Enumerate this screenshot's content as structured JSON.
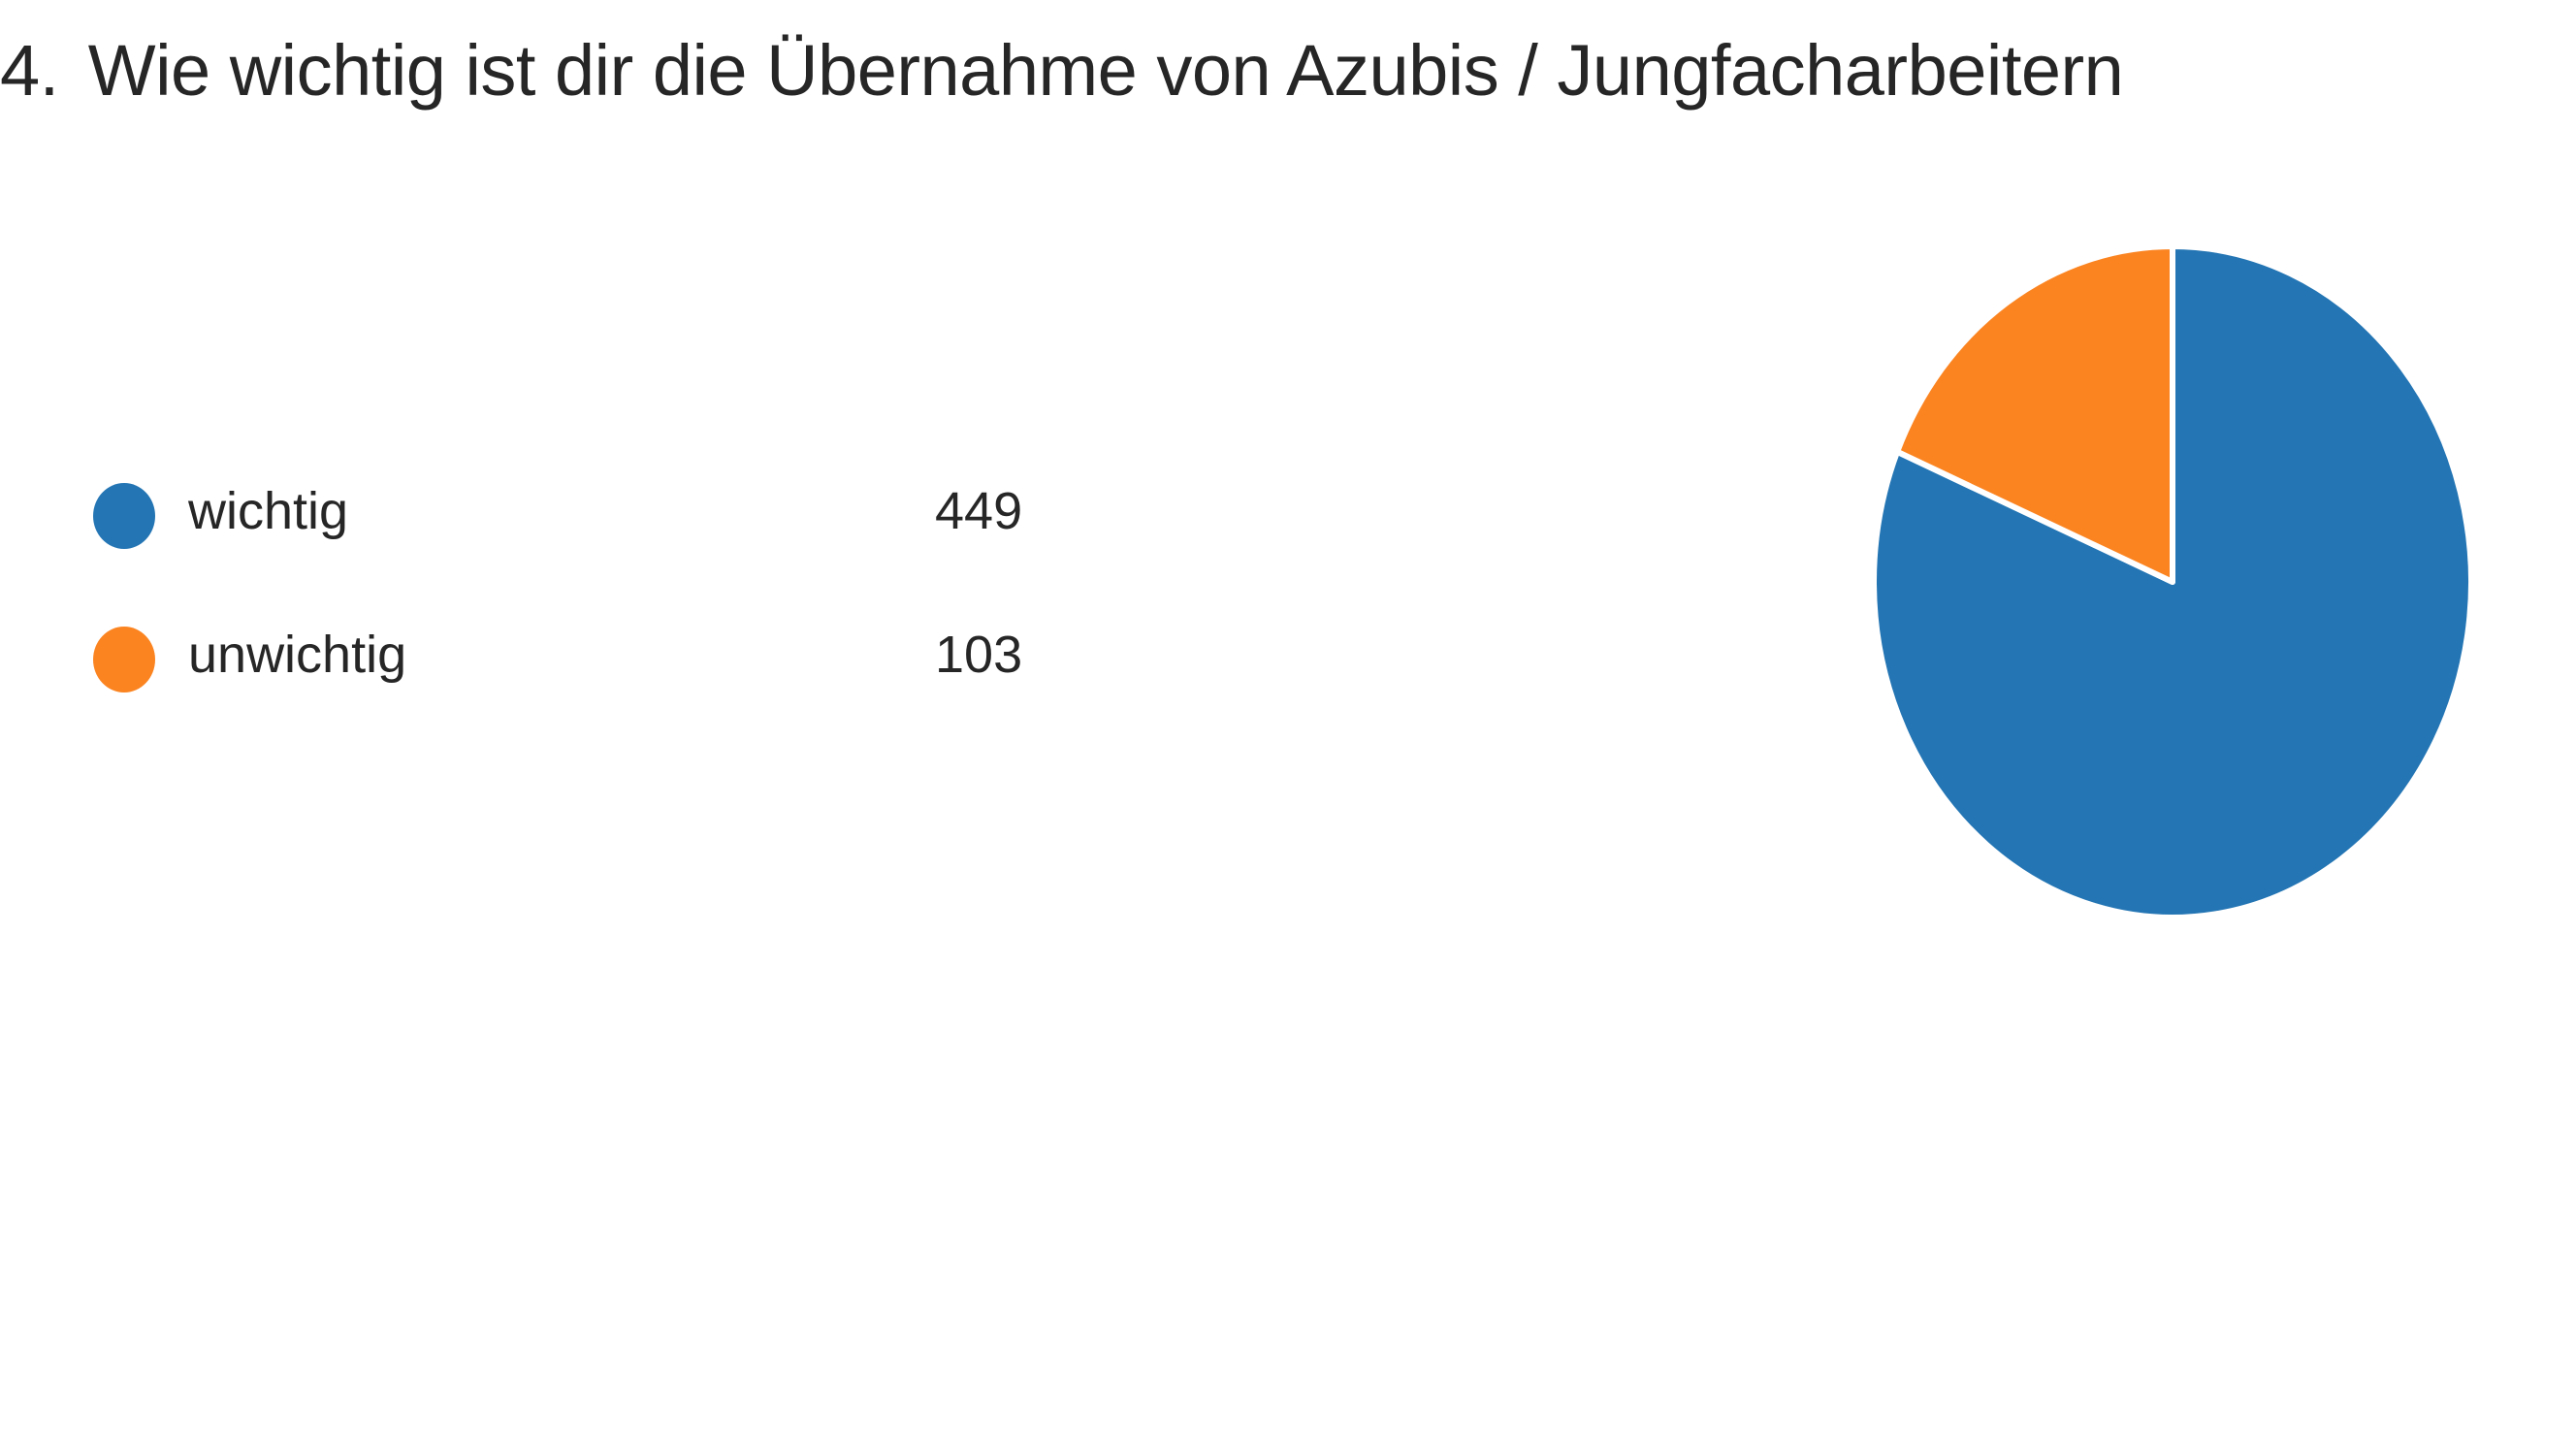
{
  "question": {
    "number": "4.",
    "text": "Wie wichtig ist dir die Übernahme von Azubis / Jungfacharbeitern"
  },
  "chart_data": {
    "type": "pie",
    "categories": [
      "wichtig",
      "unwichtig"
    ],
    "values": [
      449,
      103
    ],
    "colors": [
      "#2375b4",
      "#fb8421"
    ],
    "legend_position": "left"
  }
}
